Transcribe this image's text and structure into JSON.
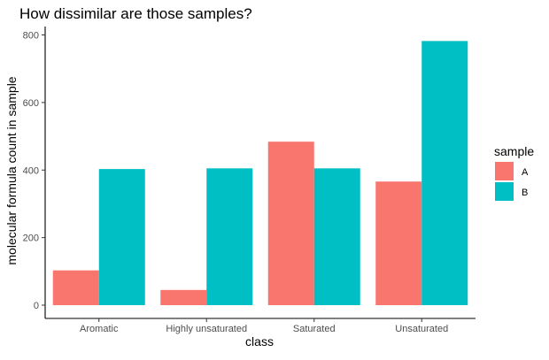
{
  "chart_data": {
    "type": "bar",
    "title": "How dissimilar are those samples?",
    "xlabel": "class",
    "ylabel": "molecular formula count in sample",
    "categories": [
      "Aromatic",
      "Highly unsaturated",
      "Saturated",
      "Unsaturated"
    ],
    "series": [
      {
        "name": "A",
        "color": "#F8766D",
        "values": [
          103,
          45,
          484,
          366
        ]
      },
      {
        "name": "B",
        "color": "#00BFC4",
        "values": [
          403,
          405,
          405,
          782
        ]
      }
    ],
    "ylim": [
      0,
      820
    ],
    "yticks": [
      0,
      200,
      400,
      600,
      800
    ],
    "grid": false,
    "legend": {
      "title": "sample",
      "position": "right"
    }
  }
}
